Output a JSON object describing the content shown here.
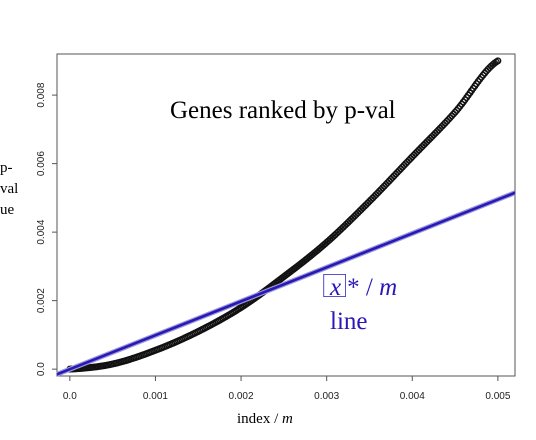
{
  "chart_data": {
    "type": "scatter",
    "title": "",
    "xlabel": "index / m",
    "xlabel_parts": [
      "index / ",
      "m"
    ],
    "ylabel_lines": [
      "p-",
      "val",
      "ue"
    ],
    "xlim": [
      -0.00015,
      0.0052
    ],
    "ylim": [
      -0.0002,
      0.0092
    ],
    "x_ticks": [
      0.0,
      0.001,
      0.002,
      0.003,
      0.004,
      0.005
    ],
    "x_tick_labels": [
      "0.0",
      "0.001",
      "0.002",
      "0.003",
      "0.004",
      "0.005"
    ],
    "y_ticks": [
      0.0,
      0.002,
      0.004,
      0.006,
      0.008
    ],
    "y_tick_labels": [
      "0.0",
      "0.002",
      "0.004",
      "0.006",
      "0.008"
    ],
    "grid": false,
    "series": [
      {
        "kind": "points",
        "color": "#111111",
        "curve_points": [
          [
            0.0,
            0.0
          ],
          [
            0.0005,
            0.00015
          ],
          [
            0.001,
            0.00055
          ],
          [
            0.0015,
            0.0011
          ],
          [
            0.002,
            0.0018
          ],
          [
            0.0025,
            0.0027
          ],
          [
            0.003,
            0.0037
          ],
          [
            0.0035,
            0.0049
          ],
          [
            0.004,
            0.0062
          ],
          [
            0.0045,
            0.0075
          ],
          [
            0.005,
            0.009
          ]
        ]
      },
      {
        "kind": "line",
        "color": "#2a17b8",
        "x": [
          -0.00015,
          0.0052
        ],
        "y": [
          -0.00015,
          0.00515
        ]
      }
    ],
    "annotations": {
      "genes_label": "Genes ranked by p-val",
      "line_label_x": "x",
      "line_label_glyph": "⃞",
      "line_label_star": "*",
      "line_label_slash": " / ",
      "line_label_m": "m",
      "line_label_word": "line"
    }
  }
}
